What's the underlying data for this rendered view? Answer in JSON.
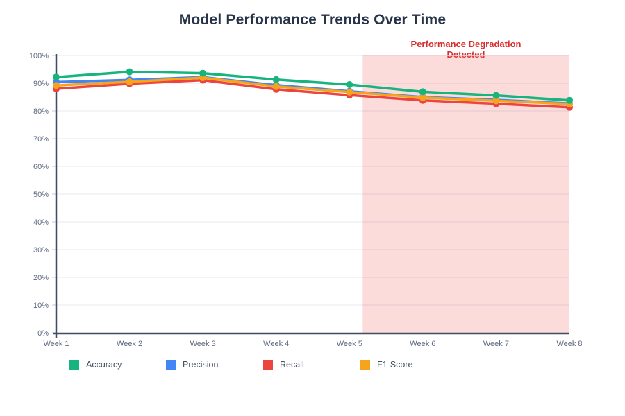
{
  "title": "Model Performance Trends Over Time",
  "annotation": {
    "line1": "Performance Degradation",
    "line2": "Detected",
    "text_color": "#d72d2d"
  },
  "colors": {
    "axis_line": "#414d63",
    "axis_text": "#5d6880",
    "gridline": "#edf0f6",
    "tick": "#ccd3e0",
    "legend_text": "#45505f",
    "title_text": "#263348"
  },
  "chart_data": {
    "type": "line",
    "title": "Model Performance Trends Over Time",
    "x_labels": [
      "Week 1",
      "Week 2",
      "Week 3",
      "Week 4",
      "Week 5",
      "Week 6",
      "Week 7",
      "Week 8"
    ],
    "y_tick_labels": [
      "0%",
      "10%",
      "20%",
      "30%",
      "40%",
      "50%",
      "60%",
      "70%",
      "80%",
      "90%",
      "100%"
    ],
    "ylim": [
      0,
      100
    ],
    "grid": "horizontal",
    "legend_position": "bottom",
    "series": [
      {
        "name": "Accuracy",
        "color": "#18b47e",
        "values": [
          92.2,
          94.1,
          93.6,
          91.3,
          89.5,
          86.9,
          85.6,
          83.8
        ]
      },
      {
        "name": "Precision",
        "color": "#4285f4",
        "values": [
          90.4,
          91.2,
          92.2,
          89.3,
          87.1,
          85.0,
          84.0,
          82.7
        ]
      },
      {
        "name": "Recall",
        "color": "#ec4540",
        "values": [
          88.0,
          89.8,
          91.1,
          87.8,
          85.7,
          83.8,
          82.6,
          81.3
        ]
      },
      {
        "name": "F1-Score",
        "color": "#f5a41b",
        "values": [
          89.2,
          90.5,
          92.0,
          88.8,
          86.8,
          84.8,
          83.7,
          82.5
        ]
      }
    ],
    "shaded_region": {
      "label": "Performance Degradation Detected",
      "x_start_week": 5.18,
      "x_end_week": 8,
      "fill": "rgba(238,95,92,0.22)"
    }
  }
}
